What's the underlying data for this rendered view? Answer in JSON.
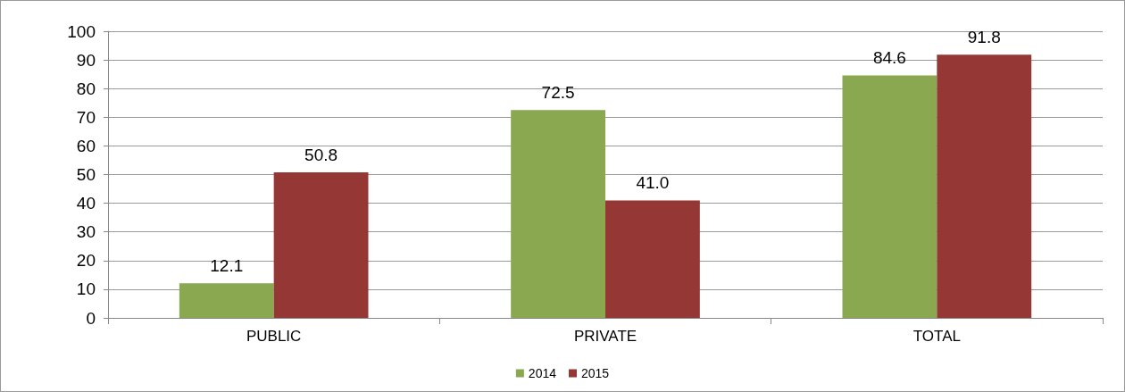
{
  "chart_data": {
    "type": "bar",
    "categories": [
      "PUBLIC",
      "PRIVATE",
      "TOTAL"
    ],
    "series": [
      {
        "name": "2014",
        "color": "#8aa84f",
        "values": [
          12.1,
          72.5,
          84.6
        ],
        "value_labels": [
          "12.1",
          "72.5",
          "84.6"
        ]
      },
      {
        "name": "2015",
        "color": "#953735",
        "values": [
          50.8,
          41.0,
          91.8
        ],
        "value_labels": [
          "50.8",
          "41.0",
          "91.8"
        ]
      }
    ],
    "ylim": [
      0,
      100
    ],
    "yticks": [
      0,
      10,
      20,
      30,
      40,
      50,
      60,
      70,
      80,
      90,
      100
    ],
    "grid": "y",
    "legend": "bottom"
  }
}
